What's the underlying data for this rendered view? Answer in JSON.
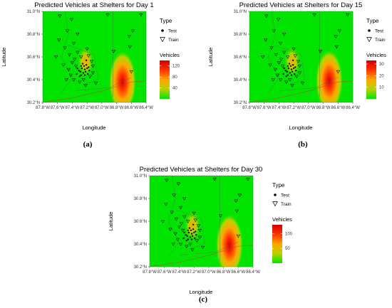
{
  "figure": {
    "panels": [
      "(a)",
      "(b)",
      "(c)"
    ]
  },
  "chart_data": [
    {
      "type": "heatmap",
      "panel": "(a)",
      "title": "Predicted Vehicles at Shelters for Day 1",
      "xlabel": "Longitude",
      "ylabel": "Latitude",
      "xlim": [
        -87.8,
        -86.4
      ],
      "ylim": [
        30.2,
        31.0
      ],
      "x_ticks": [
        "87.8°W",
        "87.6°W",
        "87.4°W",
        "87.2°W",
        "87.0°W",
        "86.8°W",
        "86.6°W",
        "86.4°W"
      ],
      "y_ticks": [
        "30.2°N",
        "30.4°N",
        "30.6°N",
        "30.8°N",
        "31.0°N"
      ],
      "legend_type": {
        "title": "Type",
        "items": [
          {
            "label": "Test",
            "symbol": "dot"
          },
          {
            "label": "Train",
            "symbol": "triangle"
          }
        ]
      },
      "colorbar": {
        "title": "Vehicles",
        "ticks": [
          40,
          80,
          120
        ],
        "range": [
          0,
          140
        ],
        "colors": [
          "#00e400",
          "#b5d400",
          "#ffa600",
          "#ff3300",
          "#d40000"
        ]
      },
      "hotspots": [
        {
          "lon": -86.72,
          "lat": 30.38,
          "value": 140,
          "spread": [
            0.1,
            0.1
          ]
        },
        {
          "lon": -87.22,
          "lat": 30.56,
          "value": 35,
          "spread": [
            0.06,
            0.05
          ]
        }
      ]
    },
    {
      "type": "heatmap",
      "panel": "(b)",
      "title": "Predicted Vehicles at Shelters for Day 15",
      "xlabel": "Longitude",
      "ylabel": "Latitude",
      "xlim": [
        -87.8,
        -86.4
      ],
      "ylim": [
        30.2,
        31.0
      ],
      "x_ticks": [
        "87.8°W",
        "87.6°W",
        "87.4°W",
        "87.2°W",
        "87.0°W",
        "86.8°W",
        "86.6°W",
        "86.4°W"
      ],
      "y_ticks": [
        "30.2°N",
        "30.4°N",
        "30.6°N",
        "30.8°N",
        "31.0°N"
      ],
      "legend_type": {
        "title": "Type",
        "items": [
          {
            "label": "Test",
            "symbol": "dot"
          },
          {
            "label": "Train",
            "symbol": "triangle"
          }
        ]
      },
      "colorbar": {
        "title": "Vehicles",
        "ticks": [
          10,
          20,
          30
        ],
        "range": [
          0,
          33
        ],
        "colors": [
          "#00e400",
          "#b5d400",
          "#ffa600",
          "#ff3300",
          "#d40000"
        ]
      },
      "hotspots": [
        {
          "lon": -86.72,
          "lat": 30.39,
          "value": 33,
          "spread": [
            0.1,
            0.1
          ]
        },
        {
          "lon": -87.22,
          "lat": 30.56,
          "value": 10,
          "spread": [
            0.06,
            0.05
          ]
        }
      ]
    },
    {
      "type": "heatmap",
      "panel": "(c)",
      "title": "Predicted Vehicles at Shelters for Day 30",
      "xlabel": "Longitude",
      "ylabel": "Latitude",
      "xlim": [
        -87.8,
        -86.4
      ],
      "ylim": [
        30.2,
        31.0
      ],
      "x_ticks": [
        "87.8°W",
        "87.6°W",
        "87.4°W",
        "87.2°W",
        "87.0°W",
        "86.8°W",
        "86.6°W",
        "86.4°W"
      ],
      "y_ticks": [
        "30.2°N",
        "30.4°N",
        "30.6°N",
        "30.8°N",
        "31.0°N"
      ],
      "legend_type": {
        "title": "Type",
        "items": [
          {
            "label": "Test",
            "symbol": "dot"
          },
          {
            "label": "Train",
            "symbol": "triangle"
          }
        ]
      },
      "colorbar": {
        "title": "Vehicles",
        "ticks": [
          50,
          100
        ],
        "range": [
          0,
          130
        ],
        "colors": [
          "#00e400",
          "#b5d400",
          "#ffa600",
          "#ff3300",
          "#d40000"
        ]
      },
      "hotspots": [
        {
          "lon": -86.72,
          "lat": 30.39,
          "value": 130,
          "spread": [
            0.1,
            0.1
          ]
        },
        {
          "lon": -87.22,
          "lat": 30.56,
          "value": 35,
          "spread": [
            0.06,
            0.05
          ]
        }
      ]
    }
  ],
  "shelters": {
    "test": [
      [
        -87.34,
        30.45
      ],
      [
        -87.31,
        30.48
      ],
      [
        -87.29,
        30.47
      ],
      [
        -87.28,
        30.44
      ],
      [
        -87.27,
        30.5
      ],
      [
        -87.25,
        30.46
      ],
      [
        -87.24,
        30.52
      ],
      [
        -87.23,
        30.49
      ],
      [
        -87.22,
        30.47
      ],
      [
        -87.21,
        30.53
      ],
      [
        -87.2,
        30.5
      ],
      [
        -87.19,
        30.45
      ],
      [
        -87.18,
        30.51
      ],
      [
        -87.3,
        30.43
      ],
      [
        -87.26,
        30.54
      ],
      [
        -87.33,
        30.5
      ],
      [
        -87.23,
        30.44
      ],
      [
        -87.17,
        30.48
      ],
      [
        -87.28,
        30.52
      ],
      [
        -87.21,
        30.57
      ]
    ],
    "train": [
      [
        -87.57,
        30.96
      ],
      [
        -87.41,
        30.93
      ],
      [
        -86.92,
        30.97
      ],
      [
        -86.47,
        30.97
      ],
      [
        -87.47,
        30.83
      ],
      [
        -87.33,
        30.8
      ],
      [
        -86.58,
        30.83
      ],
      [
        -86.63,
        30.78
      ],
      [
        -87.58,
        30.75
      ],
      [
        -87.38,
        30.72
      ],
      [
        -86.62,
        30.69
      ],
      [
        -86.84,
        30.65
      ],
      [
        -87.5,
        30.68
      ],
      [
        -87.44,
        30.62
      ],
      [
        -87.2,
        30.67
      ],
      [
        -87.62,
        30.6
      ],
      [
        -87.37,
        30.58
      ],
      [
        -87.28,
        30.6
      ],
      [
        -87.18,
        30.61
      ],
      [
        -87.14,
        30.56
      ],
      [
        -87.4,
        30.55
      ],
      [
        -87.35,
        30.52
      ],
      [
        -87.45,
        30.49
      ],
      [
        -87.42,
        30.44
      ],
      [
        -87.38,
        30.4
      ],
      [
        -87.48,
        30.4
      ],
      [
        -87.3,
        30.38
      ],
      [
        -87.25,
        30.4
      ],
      [
        -87.16,
        30.43
      ],
      [
        -87.12,
        30.46
      ],
      [
        -87.08,
        30.37
      ],
      [
        -86.6,
        30.47
      ],
      [
        -87.52,
        30.53
      ],
      [
        -87.22,
        30.35
      ],
      [
        -87.12,
        30.52
      ],
      [
        -87.33,
        30.64
      ]
    ]
  }
}
